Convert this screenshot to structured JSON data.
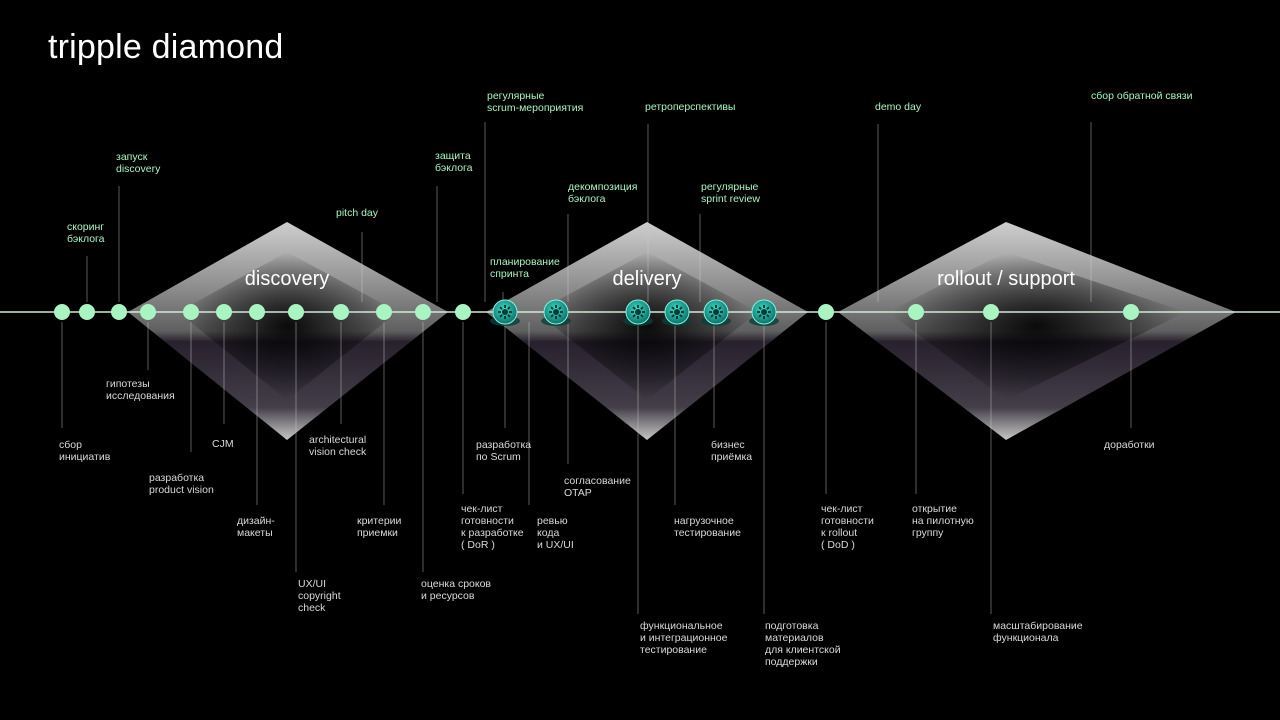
{
  "title": "tripple diamond",
  "phases": [
    "discovery",
    "delivery",
    "rollout / support"
  ],
  "labels_above": [
    "скоринг\nбэклога",
    "запуск\ndiscovery",
    "pitch day",
    "защита\nбэклога",
    "регулярные\nscrum-мероприятия",
    "планирование\nспринта",
    "декомпозиция\nбэклога",
    "ретроперспективы",
    "регулярные\nsprint review",
    "demo day",
    "сбор обратной связи"
  ],
  "labels_below": [
    "сбор\nинициатив",
    "гипотезы\nисследования",
    "разработка\nproduct vision",
    "CJM",
    "дизайн-\nмакеты",
    "UX/UI\ncopyright\ncheck",
    "architectural\nvision check",
    "критерии\nприемки",
    "оценка сроков\nи ресурсов",
    "чек-лист\nготовности\nк разработке\n( DoR )",
    "разработка\nпо Scrum",
    "ревью\nкода\nи UX/UI",
    "согласование\nOTAP",
    "функциональное\nи интеграционное\nтестирование",
    "нагрузочное\nтестирование",
    "бизнес\nприёмка",
    "подготовка\nматериалов\nдля клиентской\nподдержки",
    "чек-лист\nготовности\nк rollout\n( DoD )",
    "открытие\nна пилотную\nгруппу",
    "масштабирование\nфункционала",
    "доработки"
  ],
  "colors": {
    "accent": "#a8f5c2",
    "gear": "#1fb5a8",
    "line": "#cfe9d8"
  },
  "icons": [
    "gear-icon"
  ]
}
